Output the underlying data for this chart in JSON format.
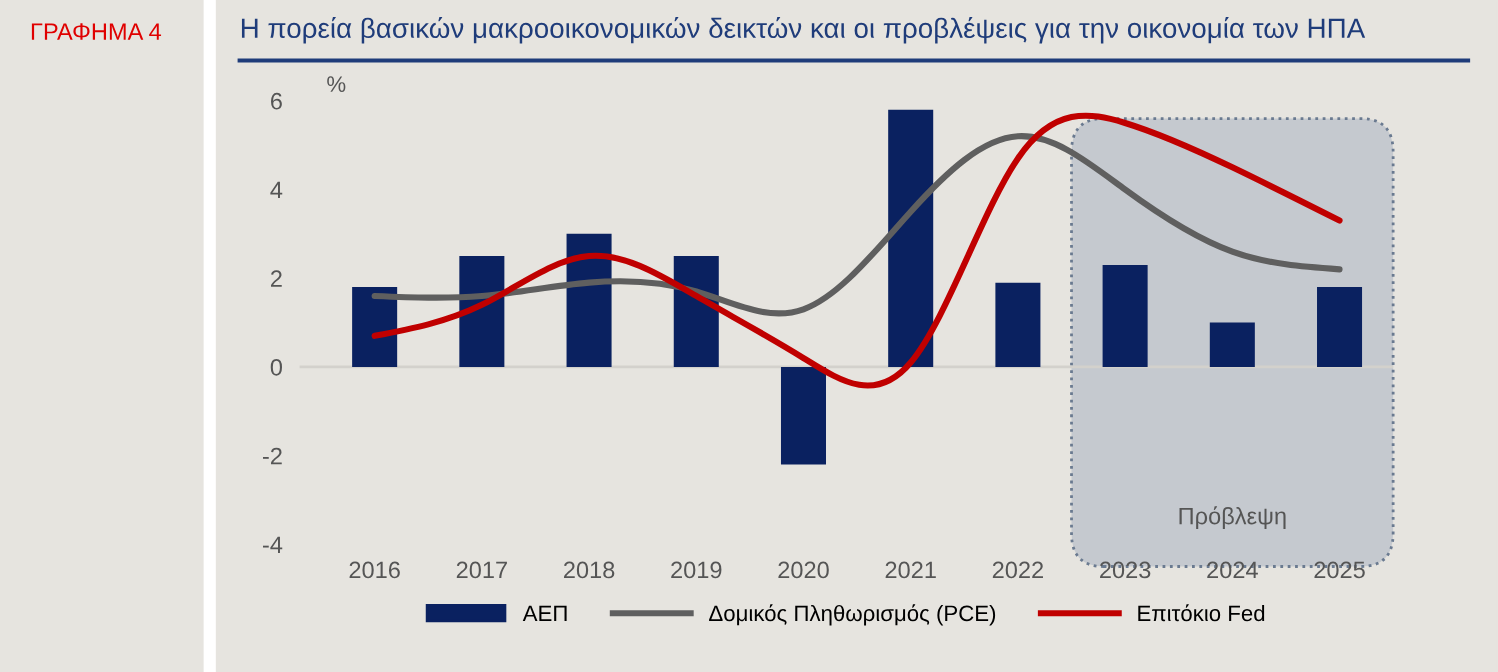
{
  "chart_data": {
    "type": "bar",
    "title": "Η πορεία βασικών μακροοικονομικών δεικτών και οι προβλέψεις για την οικονομία των ΗΠΑ",
    "ylabel": "%",
    "annotations": [
      "ΓΡΑΦΗΜΑ 4"
    ],
    "categories": [
      "2016",
      "2017",
      "2018",
      "2019",
      "2020",
      "2021",
      "2022",
      "2023",
      "2024",
      "2025"
    ],
    "series": [
      {
        "name": "ΑΕΠ",
        "type": "bar",
        "color": "#0a2160",
        "values": [
          1.8,
          2.5,
          3.0,
          2.5,
          -2.2,
          5.8,
          1.9,
          2.3,
          1.0,
          1.8
        ]
      },
      {
        "name": "Δομικός Πληθωρισμός (PCE)",
        "type": "line",
        "color": "#5f5f5f",
        "values": [
          1.6,
          1.6,
          1.9,
          1.7,
          1.3,
          3.5,
          5.2,
          4.0,
          2.6,
          2.2
        ]
      },
      {
        "name": "Επιτόκιο Fed",
        "type": "line",
        "color": "#c00000",
        "values": [
          0.7,
          1.4,
          2.5,
          1.6,
          0.2,
          0.1,
          4.7,
          5.5,
          4.5,
          3.3
        ]
      }
    ],
    "bands": [
      {
        "axis": "x",
        "from": "2023",
        "to": "2025",
        "label": "Πρόβλεψη",
        "color": "#c5c9cf"
      }
    ],
    "ref_lines": [
      {
        "axis": "y",
        "value": 0,
        "color": "#d3d1cc"
      }
    ],
    "ylim": [
      -4,
      6
    ],
    "yticks": [
      -4,
      -2,
      0,
      2,
      4,
      6
    ],
    "grid": false,
    "legend": "bottom",
    "line_style": "solid",
    "marker": "none"
  }
}
